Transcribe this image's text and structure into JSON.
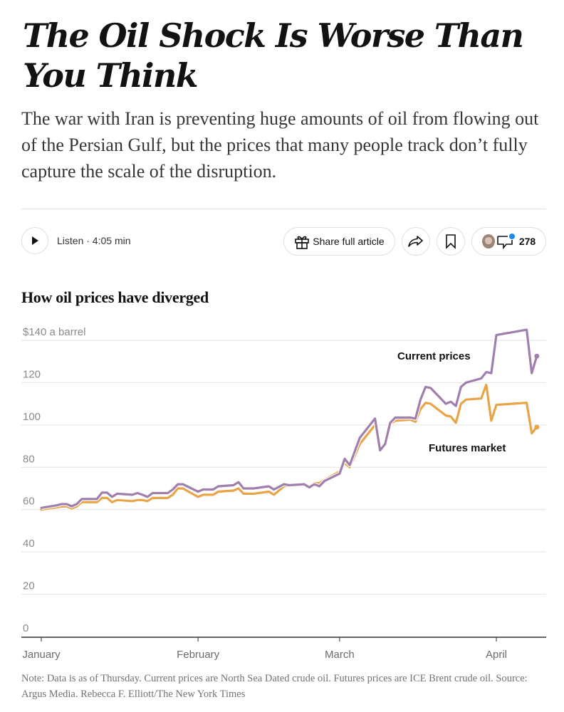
{
  "article": {
    "headline": "The Oil Shock Is Worse Than You Think",
    "dek": "The war with Iran is preventing huge amounts of oil from flowing out of the Persian Gulf, but the prices that many people track don’t fully capture the scale of the disruption."
  },
  "toolbar": {
    "listen_label": "Listen · 4:05 min",
    "share_label": "Share full article",
    "comment_count": "278",
    "icons": [
      "play-icon",
      "gift-icon",
      "share-arrow-icon",
      "bookmark-icon",
      "author-avatar",
      "comment-icon"
    ],
    "comment_dot_color": "#1a8ef0"
  },
  "chart_data": {
    "type": "line",
    "title": "How oil prices have diverged",
    "ylabel": "$ a barrel",
    "ylim": [
      0,
      140
    ],
    "yticks": [
      {
        "value": 140,
        "label": "$140 a barrel"
      },
      {
        "value": 120,
        "label": "120"
      },
      {
        "value": 100,
        "label": "100"
      },
      {
        "value": 80,
        "label": "80"
      },
      {
        "value": 60,
        "label": "60"
      },
      {
        "value": 40,
        "label": "40"
      },
      {
        "value": 20,
        "label": "20"
      },
      {
        "value": 0,
        "label": "0"
      }
    ],
    "xaxis": {
      "unit": "day of year",
      "range": [
        1,
        100
      ]
    },
    "xticks": [
      {
        "day": 1,
        "label": "January"
      },
      {
        "day": 32,
        "label": "February"
      },
      {
        "day": 60,
        "label": "March"
      },
      {
        "day": 91,
        "label": "April"
      }
    ],
    "grid": true,
    "series": [
      {
        "name": "Current prices",
        "color": "#a07fad",
        "label_position": "above-right",
        "points": [
          [
            1,
            60.8
          ],
          [
            4,
            62.0
          ],
          [
            5,
            62.6
          ],
          [
            6,
            62.6
          ],
          [
            7,
            61.6
          ],
          [
            8,
            62.6
          ],
          [
            9,
            65.0
          ],
          [
            12,
            65.0
          ],
          [
            13,
            68.0
          ],
          [
            14,
            68.0
          ],
          [
            15,
            66.0
          ],
          [
            16,
            67.5
          ],
          [
            19,
            67.0
          ],
          [
            20,
            67.8
          ],
          [
            21,
            67.0
          ],
          [
            22,
            66.0
          ],
          [
            23,
            67.8
          ],
          [
            26,
            67.8
          ],
          [
            27,
            69.5
          ],
          [
            28,
            72.0
          ],
          [
            29,
            72.0
          ],
          [
            32,
            68.5
          ],
          [
            33,
            69.5
          ],
          [
            34,
            69.5
          ],
          [
            35,
            69.5
          ],
          [
            36,
            71.0
          ],
          [
            39,
            71.5
          ],
          [
            40,
            73.0
          ],
          [
            41,
            70.0
          ],
          [
            43,
            70.0
          ],
          [
            46,
            71.0
          ],
          [
            47,
            69.5
          ],
          [
            49,
            72.0
          ],
          [
            50,
            71.5
          ],
          [
            53,
            72.0
          ],
          [
            54,
            70.5
          ],
          [
            55,
            72.0
          ],
          [
            56,
            71.0
          ],
          [
            57,
            73.5
          ],
          [
            60,
            77.0
          ],
          [
            61,
            84.0
          ],
          [
            62,
            81.0
          ],
          [
            64,
            94.0
          ],
          [
            67,
            103.0
          ],
          [
            68,
            88.0
          ],
          [
            69,
            91.0
          ],
          [
            70,
            101.0
          ],
          [
            71,
            103.5
          ],
          [
            74,
            103.5
          ],
          [
            75,
            103.0
          ],
          [
            76,
            112.0
          ],
          [
            77,
            118.0
          ],
          [
            78,
            117.5
          ],
          [
            81,
            110.0
          ],
          [
            82,
            111.0
          ],
          [
            83,
            109.0
          ],
          [
            84,
            118.0
          ],
          [
            85,
            120.0
          ],
          [
            88,
            122.0
          ],
          [
            89,
            125.0
          ],
          [
            90,
            124.5
          ],
          [
            91,
            142.5
          ],
          [
            97,
            145.0
          ],
          [
            98,
            124.5
          ],
          [
            99,
            132.5
          ]
        ]
      },
      {
        "name": "Futures market",
        "color": "#e9a448",
        "label_position": "below-right",
        "points": [
          [
            1,
            60.0
          ],
          [
            4,
            61.0
          ],
          [
            5,
            61.5
          ],
          [
            6,
            61.5
          ],
          [
            7,
            60.5
          ],
          [
            8,
            61.5
          ],
          [
            9,
            63.5
          ],
          [
            12,
            63.5
          ],
          [
            13,
            65.5
          ],
          [
            14,
            65.5
          ],
          [
            15,
            63.5
          ],
          [
            16,
            64.5
          ],
          [
            19,
            64.0
          ],
          [
            20,
            64.5
          ],
          [
            21,
            64.5
          ],
          [
            22,
            64.0
          ],
          [
            23,
            65.5
          ],
          [
            26,
            65.5
          ],
          [
            27,
            67.0
          ],
          [
            28,
            70.0
          ],
          [
            29,
            70.0
          ],
          [
            32,
            66.0
          ],
          [
            33,
            67.0
          ],
          [
            34,
            67.0
          ],
          [
            35,
            67.0
          ],
          [
            36,
            68.5
          ],
          [
            39,
            69.0
          ],
          [
            40,
            70.0
          ],
          [
            41,
            67.5
          ],
          [
            43,
            67.5
          ],
          [
            46,
            68.5
          ],
          [
            47,
            67.0
          ],
          [
            49,
            71.0
          ],
          [
            50,
            71.5
          ],
          [
            53,
            72.0
          ],
          [
            54,
            71.0
          ],
          [
            55,
            72.5
          ],
          [
            56,
            72.5
          ],
          [
            57,
            74.0
          ],
          [
            60,
            78.0
          ],
          [
            61,
            82.0
          ],
          [
            62,
            80.0
          ],
          [
            64,
            91.0
          ],
          [
            67,
            100.0
          ],
          [
            68,
            88.0
          ],
          [
            69,
            91.0
          ],
          [
            70,
            100.5
          ],
          [
            71,
            102.0
          ],
          [
            74,
            102.5
          ],
          [
            75,
            101.5
          ],
          [
            76,
            107.5
          ],
          [
            77,
            110.5
          ],
          [
            78,
            110.0
          ],
          [
            81,
            104.5
          ],
          [
            82,
            104.0
          ],
          [
            83,
            101.0
          ],
          [
            84,
            110.0
          ],
          [
            85,
            112.0
          ],
          [
            88,
            112.5
          ],
          [
            89,
            119.0
          ],
          [
            90,
            102.0
          ],
          [
            91,
            109.5
          ],
          [
            97,
            110.5
          ],
          [
            98,
            96.0
          ],
          [
            99,
            99.0
          ]
        ]
      }
    ],
    "note": "Note: Data is as of Thursday. Current prices are North Sea Dated crude oil. Futures prices are ICE Brent crude oil.  Source: Argus Media.  Rebecca F. Elliott/The New York Times"
  }
}
